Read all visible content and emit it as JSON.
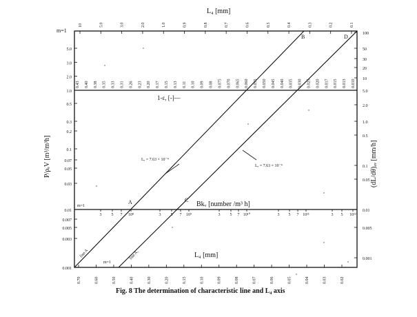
{
  "top_axis": {
    "title": "L₄ [mm]",
    "ticks": [
      "10",
      "5.0",
      "3.0",
      "2.0",
      "1.0",
      "0.9",
      "0.8",
      "0.7",
      "0.6",
      "0.5",
      "0.4",
      "0.3",
      "0.2",
      "0.1"
    ]
  },
  "left_upper": {
    "corner": "m=1",
    "ticks": [
      "5.0",
      "3.0",
      "2.0",
      "1.0"
    ]
  },
  "left_axis": {
    "title": "P/ρₑV [m³/m³h]",
    "ticks": [
      "0.5",
      "0.3",
      "0.2",
      "0.1",
      "0.07",
      "0.05",
      "0.03",
      "0.01"
    ]
  },
  "left_lower": {
    "ticks": [
      "0.007",
      "0.005",
      "0.003",
      "0.001"
    ]
  },
  "right_axis": {
    "title": "(dL/dθ)ₐᵥ [mm/h]",
    "upper_ticks": [
      "100",
      "50",
      "30",
      "20",
      "10",
      "5.0"
    ],
    "middle_ticks": [
      "2.0",
      "1.0",
      "0.5",
      "0.1",
      "0.05",
      "0.01"
    ],
    "lower_ticks": [
      "0.005",
      "0.001"
    ]
  },
  "row_labels": {
    "upper_values": [
      "0.43",
      "0.40",
      "0.38",
      "0.35",
      "0.33",
      "0.31",
      "0.26",
      "0.23",
      "0.20",
      "0.17",
      "0.15",
      "0.13",
      "0.11",
      "0.10",
      "0.09",
      "0.08",
      "0.075",
      "0.070",
      "0.065",
      "0.060",
      "0.055",
      "0.050",
      "0.045",
      "0.040",
      "0.035",
      "0.030",
      "0.025",
      "0.020",
      "0.017",
      "0.015",
      "0.013",
      "0.010"
    ],
    "formula": "1-ε, [-]—"
  },
  "bk_axis": {
    "title": "Bkᵥ [number /m³ h]",
    "labels": [
      "m=1",
      "3",
      "5",
      "7",
      "10⁸",
      "3",
      "5",
      "7",
      "10⁹",
      "3",
      "5",
      "7",
      "10¹⁰",
      "3",
      "5",
      "7",
      "10¹¹",
      "3",
      "5",
      "10¹²"
    ]
  },
  "bottom_axis": {
    "title": "L₄ [mm]",
    "ticks": [
      "0.70",
      "0.60",
      "0.50",
      "0.40",
      "0.30",
      "0.20",
      "0.15",
      "0.10",
      "0.09",
      "0.08",
      "0.07",
      "0.06",
      "0.05",
      "0.04",
      "0.03",
      "0.02"
    ],
    "corner": "m=1"
  },
  "points": {
    "A": "A",
    "B": "B",
    "C": "C",
    "D": "D"
  },
  "line_labels": {
    "upper": "Lₑ = 7.63 × 10⁻⁴",
    "lower": "Lₑ = 7.63 × 10⁻⁴",
    "line_a": "line A",
    "line_b": "line A₁"
  },
  "caption": "Fig. 8  The determination of characteristic line and L₄ axis"
}
